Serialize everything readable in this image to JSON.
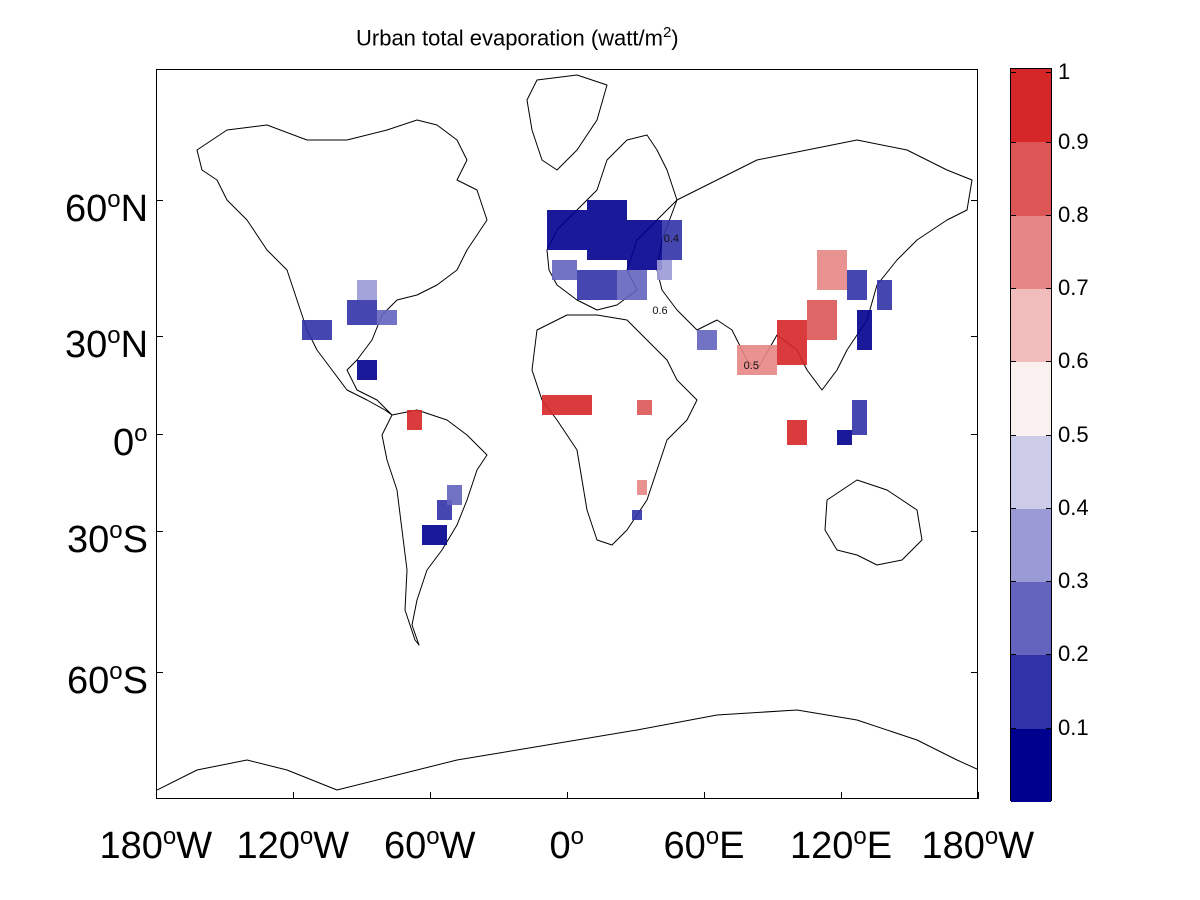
{
  "title": {
    "text": "Urban total evaporation (watt/m",
    "sup": "2",
    "close": ")"
  },
  "y_axis": {
    "labels": [
      {
        "text": "60",
        "deg": "o",
        "hem": "N",
        "lat": 60
      },
      {
        "text": "30",
        "deg": "o",
        "hem": "N",
        "lat": 30
      },
      {
        "text": "0",
        "deg": "o",
        "hem": "",
        "lat": 0
      },
      {
        "text": "30",
        "deg": "o",
        "hem": "S",
        "lat": -30
      },
      {
        "text": "60",
        "deg": "o",
        "hem": "S",
        "lat": -60
      }
    ]
  },
  "x_axis": {
    "labels": [
      {
        "text": "180",
        "deg": "o",
        "hem": "W",
        "lon": -180
      },
      {
        "text": "120",
        "deg": "o",
        "hem": "W",
        "lon": -120
      },
      {
        "text": "60",
        "deg": "o",
        "hem": "W",
        "lon": -60
      },
      {
        "text": "0",
        "deg": "o",
        "hem": "",
        "lon": 0
      },
      {
        "text": "60",
        "deg": "o",
        "hem": "E",
        "lon": 60
      },
      {
        "text": "120",
        "deg": "o",
        "hem": "E",
        "lon": 120
      },
      {
        "text": "180",
        "deg": "o",
        "hem": "W",
        "lon": 180
      }
    ]
  },
  "colorbar": {
    "labels": [
      "1",
      "0.9",
      "0.8",
      "0.7",
      "0.6",
      "0.5",
      "0.4",
      "0.3",
      "0.2",
      "0.1"
    ],
    "colors": [
      "#d62728",
      "#dc5656",
      "#e68786",
      "#f0bcbc",
      "#faf0f0",
      "#cccce8",
      "#9a9ad6",
      "#6464bf",
      "#3232a8",
      "#00008f"
    ]
  },
  "contour_labels": [
    {
      "text": "0.4",
      "lon": 45,
      "lat": 53
    },
    {
      "text": "0.6",
      "lon": 40,
      "lat": 38
    },
    {
      "text": "0.5",
      "lon": 80,
      "lat": 22
    }
  ],
  "colors": {
    "land_outline": "#000000",
    "frame": "#000000"
  }
}
